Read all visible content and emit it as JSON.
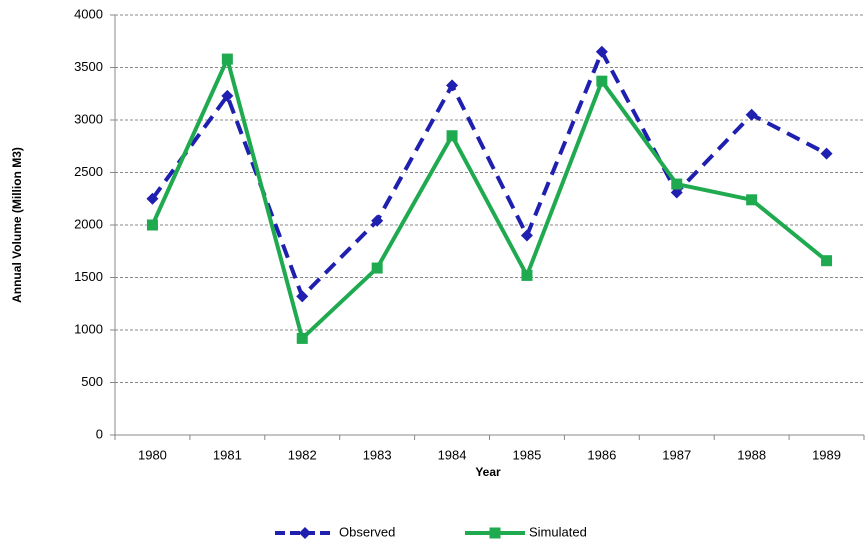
{
  "chart_data": {
    "type": "line",
    "x_label": "Year",
    "y_label": "Annual Volume (Million M3)",
    "categories": [
      "1980",
      "1981",
      "1982",
      "1983",
      "1984",
      "1985",
      "1986",
      "1987",
      "1988",
      "1989"
    ],
    "series": [
      {
        "name": "Observed",
        "color": "#1f1fb0",
        "dashed": true,
        "marker": "diamond",
        "values": [
          2250,
          3230,
          1320,
          2040,
          3330,
          1900,
          3650,
          2310,
          3050,
          2680
        ]
      },
      {
        "name": "Simulated",
        "color": "#1faa4f",
        "dashed": false,
        "marker": "square",
        "values": [
          2000,
          3580,
          920,
          1590,
          2850,
          1520,
          3370,
          2390,
          2240,
          1660
        ]
      }
    ],
    "ylim": [
      0,
      4000
    ],
    "yticks": [
      0,
      500,
      1000,
      1500,
      2000,
      2500,
      3000,
      3500,
      4000
    ],
    "grid": true,
    "legend": "bottom"
  }
}
